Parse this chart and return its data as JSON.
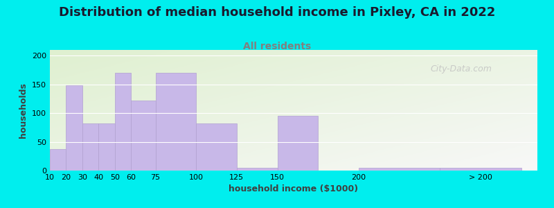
{
  "title": "Distribution of median household income in Pixley, CA in 2022",
  "subtitle": "All residents",
  "xlabel": "household income ($1000)",
  "ylabel": "households",
  "bg_outer": "#00EEEE",
  "bg_plot_grad_tl": "#dff0d0",
  "bg_plot_grad_br": "#f8f8f8",
  "bar_color": "#c8b8e8",
  "bar_edge_color": "#b0a0d0",
  "title_fontsize": 13,
  "subtitle_fontsize": 10,
  "subtitle_color": "#808080",
  "values": [
    37,
    148,
    82,
    82,
    170,
    122,
    170,
    82,
    5,
    95,
    5,
    5
  ],
  "bar_widths": [
    10,
    10,
    10,
    10,
    10,
    15,
    25,
    25,
    25,
    25,
    50,
    50
  ],
  "bar_lefts": [
    10,
    20,
    30,
    40,
    50,
    60,
    75,
    100,
    125,
    150,
    200,
    250
  ],
  "xlim": [
    10,
    310
  ],
  "ylim": [
    0,
    210
  ],
  "yticks": [
    0,
    50,
    100,
    150,
    200
  ],
  "xtick_labels": [
    "10",
    "20",
    "30",
    "40",
    "50",
    "60",
    "75",
    "100",
    "125",
    "150",
    "200",
    "> 200"
  ],
  "xtick_positions": [
    10,
    20,
    30,
    40,
    50,
    60,
    75,
    100,
    125,
    150,
    200,
    275
  ],
  "watermark_text": "City-Data.com"
}
